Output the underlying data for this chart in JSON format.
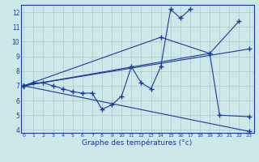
{
  "xlabel": "Graphe des températures (°c)",
  "background_color": "#cce8e8",
  "grid_color": "#b0c8c8",
  "line_color": "#1a3a9a",
  "line1_x": [
    0,
    1,
    2,
    3,
    4,
    5,
    6,
    7,
    8,
    9,
    10,
    11,
    12,
    13,
    14,
    15,
    16,
    17
  ],
  "line1_y": [
    7.0,
    7.2,
    7.2,
    7.0,
    6.8,
    6.6,
    6.5,
    6.5,
    5.4,
    5.7,
    6.3,
    8.3,
    7.2,
    6.8,
    8.3,
    12.2,
    11.6,
    12.2
  ],
  "line2_x": [
    0,
    14,
    19,
    22
  ],
  "line2_y": [
    7.0,
    10.3,
    9.2,
    11.4
  ],
  "line3_x": [
    0,
    23
  ],
  "line3_y": [
    7.0,
    3.9
  ],
  "line4_x": [
    0,
    19,
    20,
    23
  ],
  "line4_y": [
    7.0,
    9.2,
    5.0,
    4.9
  ],
  "line5_x": [
    0,
    23
  ],
  "line5_y": [
    7.0,
    9.5
  ],
  "ylim": [
    3.8,
    12.5
  ],
  "xlim": [
    -0.3,
    23.5
  ],
  "yticks": [
    4,
    5,
    6,
    7,
    8,
    9,
    10,
    11,
    12
  ],
  "xticks": [
    0,
    1,
    2,
    3,
    4,
    5,
    6,
    7,
    8,
    9,
    10,
    11,
    12,
    13,
    14,
    15,
    16,
    17,
    18,
    19,
    20,
    21,
    22,
    23
  ]
}
